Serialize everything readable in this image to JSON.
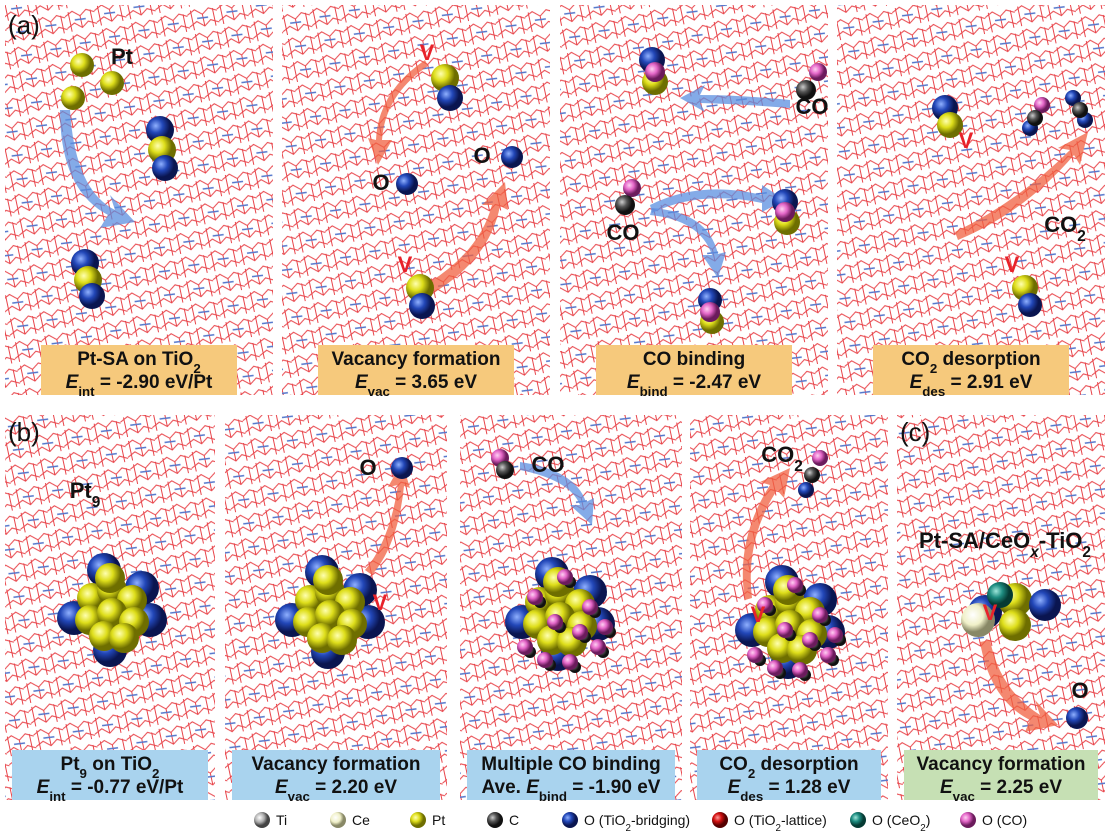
{
  "panel_labels": [
    "(a)",
    "(b)",
    "(c)"
  ],
  "panels": [
    {
      "caption": [
        [
          {
            "t": "Pt-SA on TiO"
          },
          {
            "sub": "2"
          }
        ],
        [
          {
            "i": "E"
          },
          {
            "sub": "int"
          },
          {
            "t": " = -2.90 eV/Pt"
          }
        ]
      ],
      "labels": [
        [
          {
            "t": "Pt"
          }
        ]
      ]
    },
    {
      "caption": [
        [
          {
            "t": "Vacancy formation"
          }
        ],
        [
          {
            "i": "E"
          },
          {
            "sub": "vac"
          },
          {
            "t": " = 3.65 eV"
          }
        ]
      ],
      "labels": [
        [
          {
            "t": "V"
          }
        ],
        [
          {
            "t": "O"
          }
        ],
        [
          {
            "t": "O"
          }
        ],
        [
          {
            "t": "V"
          }
        ]
      ]
    },
    {
      "caption": [
        [
          {
            "t": "CO binding"
          }
        ],
        [
          {
            "i": "E"
          },
          {
            "sub": "bind"
          },
          {
            "t": " = -2.47 eV"
          }
        ]
      ],
      "labels": [
        [
          {
            "t": "CO"
          }
        ],
        [
          {
            "t": "CO"
          }
        ]
      ]
    },
    {
      "caption": [
        [
          {
            "t": "CO"
          },
          {
            "sub": "2"
          },
          {
            "t": " desorption"
          }
        ],
        [
          {
            "i": "E"
          },
          {
            "sub": "des"
          },
          {
            "t": " = 2.91 eV"
          }
        ]
      ],
      "labels": [
        [
          {
            "t": "V"
          }
        ],
        [
          {
            "t": "CO"
          },
          {
            "sub": "2"
          }
        ],
        [
          {
            "t": "V"
          }
        ]
      ]
    },
    {
      "caption": [
        [
          {
            "t": "Pt"
          },
          {
            "sub": "9"
          },
          {
            "t": " on TiO"
          },
          {
            "sub": "2"
          }
        ],
        [
          {
            "i": "E"
          },
          {
            "sub": "int"
          },
          {
            "t": " = -0.77 eV/Pt"
          }
        ]
      ],
      "labels": [
        [
          {
            "t": "Pt"
          },
          {
            "sub": "9"
          }
        ]
      ]
    },
    {
      "caption": [
        [
          {
            "t": "Vacancy formation"
          }
        ],
        [
          {
            "i": "E"
          },
          {
            "sub": "vac"
          },
          {
            "t": " = 2.20 eV"
          }
        ]
      ],
      "labels": [
        [
          {
            "t": "O"
          }
        ],
        [
          {
            "t": "V"
          }
        ]
      ]
    },
    {
      "caption": [
        [
          {
            "t": "Multiple CO binding"
          }
        ],
        [
          {
            "t": "Ave. "
          },
          {
            "i": "E"
          },
          {
            "sub": "bind"
          },
          {
            "t": " = -1.90 eV"
          }
        ]
      ],
      "labels": [
        [
          {
            "t": "CO"
          }
        ]
      ]
    },
    {
      "caption": [
        [
          {
            "t": "CO"
          },
          {
            "sub": "2"
          },
          {
            "t": " desorption"
          }
        ],
        [
          {
            "i": "E"
          },
          {
            "sub": "des"
          },
          {
            "t": " = 1.28 eV"
          }
        ]
      ],
      "labels": [
        [
          {
            "t": "CO"
          },
          {
            "sub": "2"
          }
        ],
        [
          {
            "t": "V"
          }
        ]
      ]
    },
    {
      "caption": [
        [
          {
            "t": "Vacancy formation"
          }
        ],
        [
          {
            "i": "E"
          },
          {
            "sub": "vac"
          },
          {
            "t": " = 2.25 eV"
          }
        ]
      ],
      "labels": [
        [
          {
            "t": "Pt-SA/CeO"
          },
          {
            "isub": "x"
          },
          {
            "t": "-TiO"
          },
          {
            "sub": "2"
          }
        ],
        [
          {
            "t": "V"
          }
        ],
        [
          {
            "t": "O"
          }
        ]
      ]
    }
  ],
  "legend": [
    [
      {
        "t": "Ti"
      }
    ],
    [
      {
        "t": "Ce"
      }
    ],
    [
      {
        "t": "Pt"
      }
    ],
    [
      {
        "t": "C"
      }
    ],
    [
      {
        "t": "O (TiO"
      },
      {
        "sub": "2"
      },
      {
        "t": "-bridging)"
      }
    ],
    [
      {
        "t": "O (TiO"
      },
      {
        "sub": "2"
      },
      {
        "t": "-lattice)"
      }
    ],
    [
      {
        "t": "O (CeO"
      },
      {
        "sub": "2"
      },
      {
        "t": ")"
      }
    ],
    [
      {
        "t": "O (CO)"
      }
    ]
  ]
}
